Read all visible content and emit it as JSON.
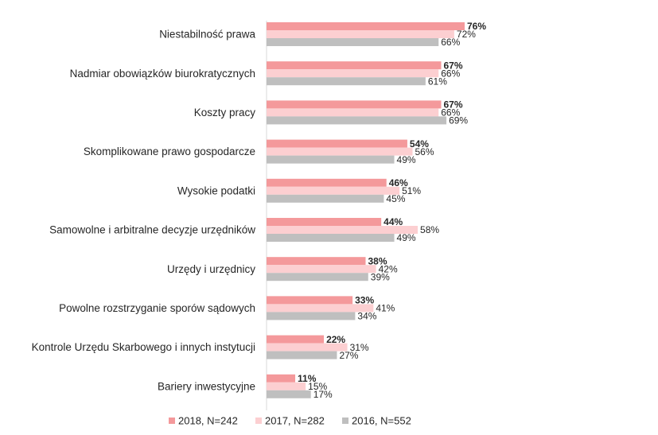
{
  "chart_data": {
    "type": "bar",
    "orientation": "horizontal",
    "categories": [
      "Niestabilność prawa",
      "Nadmiar obowiązków biurokratycznych",
      "Koszty pracy",
      "Skomplikowane prawo gospodarcze",
      "Wysokie podatki",
      "Samowolne i arbitralne decyzje urzędników",
      "Urzędy i urzędnicy",
      "Powolne rozstrzyganie sporów sądowych",
      "Kontrole Urzędu Skarbowego i innych instytucji",
      "Bariery inwestycyjne"
    ],
    "series": [
      {
        "name": "2018, N=242",
        "color": "#F4999B",
        "bold_labels": true,
        "values": [
          76,
          67,
          67,
          54,
          46,
          44,
          38,
          33,
          22,
          11
        ]
      },
      {
        "name": "2017, N=282",
        "color": "#FCCFD1",
        "bold_labels": false,
        "values": [
          72,
          66,
          66,
          56,
          51,
          58,
          42,
          41,
          31,
          15
        ]
      },
      {
        "name": "2016, N=552",
        "color": "#BFBFBF",
        "bold_labels": false,
        "values": [
          66,
          61,
          69,
          49,
          45,
          49,
          39,
          34,
          27,
          17
        ]
      }
    ],
    "value_suffix": "%",
    "xlim": [
      0,
      100
    ],
    "grid": false,
    "legend_position": "bottom",
    "title": "",
    "xlabel": "",
    "ylabel": ""
  }
}
